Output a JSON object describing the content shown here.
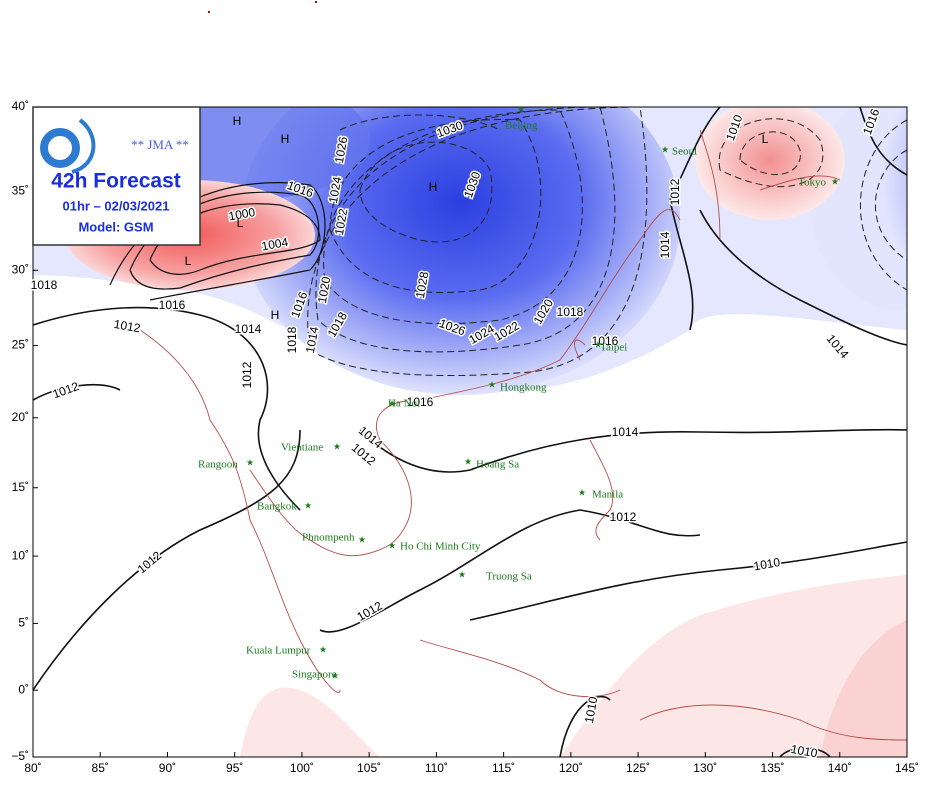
{
  "header": {
    "agency": "** JMA **",
    "title": "42h Forecast",
    "valid": "01hr – 02/03/2021",
    "model": "Model: GSM"
  },
  "axes": {
    "lon_ticks": [
      {
        "value": 80,
        "label": "80˚"
      },
      {
        "value": 85,
        "label": "85˚"
      },
      {
        "value": 90,
        "label": "90˚"
      },
      {
        "value": 95,
        "label": "95˚"
      },
      {
        "value": 100,
        "label": "100˚"
      },
      {
        "value": 105,
        "label": "105˚"
      },
      {
        "value": 110,
        "label": "110˚"
      },
      {
        "value": 115,
        "label": "115˚"
      },
      {
        "value": 120,
        "label": "120˚"
      },
      {
        "value": 125,
        "label": "125˚"
      },
      {
        "value": 130,
        "label": "130˚"
      },
      {
        "value": 135,
        "label": "135˚"
      },
      {
        "value": 140,
        "label": "140˚"
      },
      {
        "value": 145,
        "label": "145˚"
      }
    ],
    "lat_ticks": [
      {
        "value": 40,
        "label": "40˚"
      },
      {
        "value": 35,
        "label": "35˚"
      },
      {
        "value": 30,
        "label": "30˚"
      },
      {
        "value": 25,
        "label": "25˚"
      },
      {
        "value": 20,
        "label": "20˚"
      },
      {
        "value": 15,
        "label": "15˚"
      },
      {
        "value": 10,
        "label": "10˚"
      },
      {
        "value": 5,
        "label": "5˚"
      },
      {
        "value": 0,
        "label": "0˚"
      },
      {
        "value": -5,
        "label": "−5˚"
      }
    ]
  },
  "cities": [
    "Beijing",
    "Seoul",
    "Tokyo",
    "Taipei",
    "Hongkong",
    "Ha Noi",
    "Vientiane",
    "Rangoon",
    "Hoang Sa",
    "Manila",
    "Bangkok",
    "Phnompenh",
    "Ho Chi Minh City",
    "Truong Sa",
    "Kuala Lumpur",
    "Singapore"
  ],
  "pressure_centers": [
    "H",
    "H",
    "L",
    "H",
    "L",
    "L",
    "H"
  ],
  "isobar_labels": [
    "1030",
    "1030",
    "1026",
    "1024",
    "1022",
    "1020",
    "1018",
    "1016",
    "1004",
    "1000",
    "1016",
    "1012",
    "1014",
    "1016",
    "1014",
    "1018",
    "1012",
    "1012",
    "1028",
    "1026",
    "1024",
    "1022",
    "1020",
    "1018",
    "1016",
    "1016",
    "1014",
    "1012",
    "1014",
    "1012",
    "1010",
    "1012",
    "1012",
    "1010",
    "1010",
    "1010",
    "1012",
    "1014",
    "1016",
    "1014",
    "1018"
  ]
}
